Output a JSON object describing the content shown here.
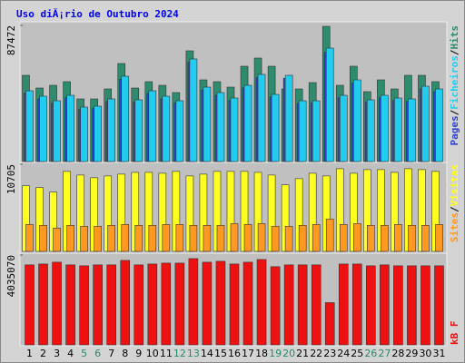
{
  "chart_data": [
    {
      "type": "bar",
      "title": "Uso diĂ¡rio de Outubro 2024",
      "title_color": "#0000ee",
      "ylim": [
        0,
        87472
      ],
      "yticks": [
        87472
      ],
      "legend_anchor": "top",
      "legend_separator": "/",
      "series": [
        {
          "name": "Hits",
          "color": "#2e8b6e",
          "values": [
            55400,
            47230,
            48980,
            51310,
            40230,
            40230,
            46650,
            62980,
            47230,
            51310,
            48980,
            44320,
            71140,
            52480,
            51310,
            47810,
            61230,
            66480,
            61230,
            46650,
            46650,
            50730,
            86880,
            48980,
            61230,
            44900,
            52480,
            46650,
            55400,
            55400,
            51310
          ]
        },
        {
          "name": "Ficheiros",
          "color": "#22ccee",
          "values": [
            45480,
            41980,
            39060,
            42560,
            34980,
            35570,
            40230,
            54810,
            39650,
            45480,
            41980,
            39060,
            65890,
            47810,
            44310,
            40810,
            48980,
            55970,
            43140,
            55390,
            39060,
            39060,
            72880,
            42560,
            52470,
            39650,
            42560,
            40810,
            40230,
            48390,
            46640
          ]
        },
        {
          "name": "Pages",
          "color": "#3344cc",
          "values": [
            43800,
            40200,
            37500,
            41000,
            33400,
            34000,
            38600,
            52900,
            38100,
            43700,
            40300,
            37600,
            63800,
            46000,
            42600,
            39200,
            47300,
            53900,
            41500,
            53500,
            37500,
            37600,
            70200,
            40900,
            50500,
            38100,
            41000,
            39200,
            38700,
            46700,
            44900
          ]
        }
      ]
    },
    {
      "type": "bar",
      "ylim": [
        0,
        10705
      ],
      "yticks": [
        10705
      ],
      "legend_anchor": "top",
      "legend_separator": "/",
      "series": [
        {
          "name": "Visitas",
          "color": "#ffff22",
          "values": [
            8060,
            7840,
            7290,
            9830,
            9380,
            9050,
            9270,
            9490,
            9710,
            9710,
            9600,
            9830,
            9270,
            9490,
            9830,
            9830,
            9830,
            9710,
            9380,
            8170,
            8940,
            9600,
            9270,
            10160,
            9600,
            10050,
            10050,
            9710,
            10160,
            10050,
            9830
          ]
        },
        {
          "name": "Sites",
          "color": "#ff9922",
          "values": [
            3310,
            3200,
            2870,
            3200,
            3090,
            3090,
            3200,
            3310,
            3200,
            3200,
            3310,
            3310,
            3200,
            3200,
            3200,
            3420,
            3310,
            3420,
            3090,
            3090,
            3200,
            3310,
            3970,
            3310,
            3420,
            3200,
            3200,
            3310,
            3200,
            3200,
            3310
          ]
        }
      ]
    },
    {
      "type": "bar",
      "ylim": [
        0,
        4035070
      ],
      "yticks": [
        4035070
      ],
      "legend_anchor": "bottom",
      "legend_separator": "/",
      "categories": [
        "1",
        "2",
        "3",
        "4",
        "5",
        "6",
        "7",
        "8",
        "9",
        "10",
        "11",
        "12",
        "13",
        "14",
        "15",
        "16",
        "17",
        "18",
        "19",
        "20",
        "21",
        "22",
        "23",
        "24",
        "25",
        "26",
        "27",
        "28",
        "29",
        "30",
        "31"
      ],
      "category_colors": [
        "#000",
        "#000",
        "#000",
        "#000",
        "#2a8a6a",
        "#2a8a6a",
        "#000",
        "#000",
        "#000",
        "#000",
        "#000",
        "#2a8a6a",
        "#2a8a6a",
        "#000",
        "#000",
        "#000",
        "#000",
        "#000",
        "#2a8a6a",
        "#2a8a6a",
        "#000",
        "#000",
        "#000",
        "#000",
        "#000",
        "#2a8a6a",
        "#2a8a6a",
        "#000",
        "#000",
        "#000",
        "#000"
      ],
      "series": [
        {
          "name": "kB F",
          "color": "#ee1111",
          "values": [
            3591000,
            3631500,
            3712200,
            3591000,
            3550800,
            3591000,
            3591000,
            3792900,
            3591000,
            3631500,
            3671900,
            3671900,
            3873700,
            3712200,
            3752600,
            3631500,
            3712200,
            3833300,
            3510500,
            3591000,
            3591000,
            3591000,
            1896500,
            3631500,
            3631500,
            3550800,
            3591000,
            3550800,
            3550800,
            3550800,
            3550800
          ]
        }
      ]
    }
  ]
}
